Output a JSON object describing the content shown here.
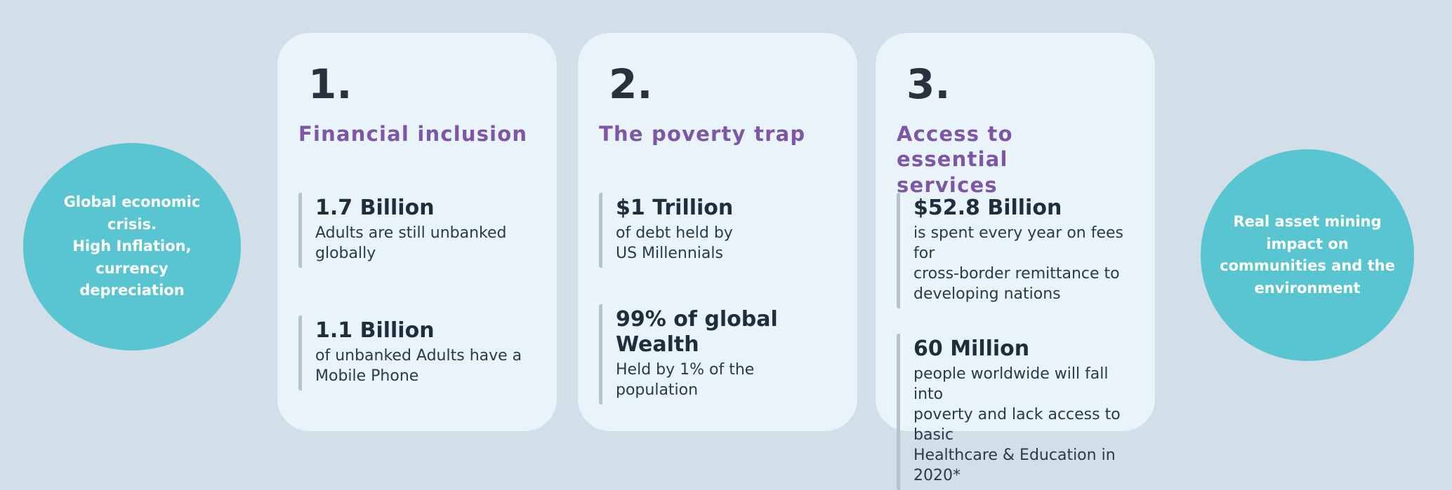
{
  "colors": {
    "page_background": "#d2dfe9",
    "card_background": "#e9f3fa",
    "circle_teal": "#58c5d1",
    "heading_purple": "#7d57a6",
    "text_dark": "#27323d",
    "stat_bar_gray": "#b7c3cb",
    "circle_text_white": "#ffffff"
  },
  "left_circle": {
    "text": "Global economic\ncrisis.\nHigh Inflation,\ncurrency\ndepreciation"
  },
  "right_circle": {
    "text": "Real asset  mining\nimpact on\ncommunities and the\nenvironment"
  },
  "cards": [
    {
      "number": "1.",
      "title": "Financial inclusion",
      "stats": [
        {
          "value": "1.7 Billion",
          "description": "Adults are still unbanked\nglobally"
        },
        {
          "value": "1.1 Billion",
          "description": "of unbanked Adults have a\nMobile Phone"
        }
      ]
    },
    {
      "number": "2.",
      "title": "The poverty trap",
      "stats": [
        {
          "value": "$1 Trillion",
          "description": "of debt held by\nUS Millennials"
        },
        {
          "value": "99% of global Wealth",
          "description": "Held by 1% of the\npopulation"
        }
      ]
    },
    {
      "number": "3.",
      "title": "Access to essential\nservices",
      "stats": [
        {
          "value": "$52.8 Billion",
          "description": "is spent every year on fees for\ncross-border remittance to\ndeveloping nations"
        },
        {
          "value": "60 Million",
          "description": "people worldwide will fall into\npoverty and lack access to basic\nHealthcare & Education in 2020*"
        }
      ]
    }
  ]
}
